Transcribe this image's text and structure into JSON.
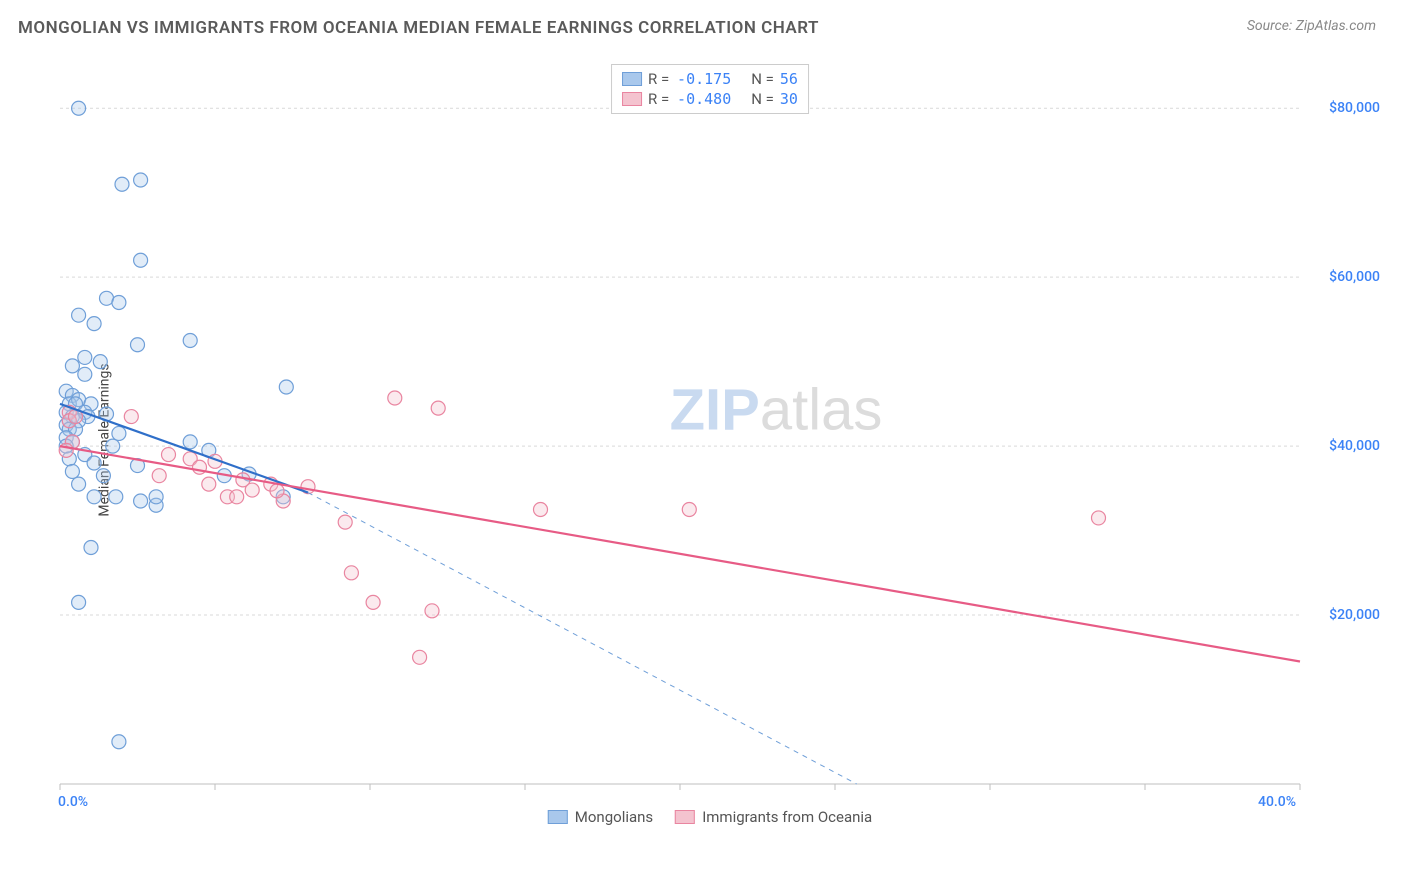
{
  "header": {
    "title": "MONGOLIAN VS IMMIGRANTS FROM OCEANIA MEDIAN FEMALE EARNINGS CORRELATION CHART",
    "source_label": "Source: ",
    "source_name": "ZipAtlas.com"
  },
  "chart": {
    "type": "scatter",
    "y_axis_label": "Median Female Earnings",
    "xlim": [
      0,
      40
    ],
    "ylim": [
      0,
      85000
    ],
    "x_ticks": [
      0,
      5,
      10,
      15,
      20,
      25,
      30,
      35,
      40
    ],
    "x_tick_labels_shown": {
      "0": "0.0%",
      "40": "40.0%"
    },
    "y_gridlines": [
      20000,
      40000,
      60000,
      80000
    ],
    "y_tick_labels": {
      "20000": "$20,000",
      "40000": "$40,000",
      "60000": "$60,000",
      "80000": "$80,000"
    },
    "background_color": "#ffffff",
    "grid_color": "#d9d9d9",
    "grid_dash": "3,3",
    "axis_color": "#bfbfbf",
    "marker_radius": 7,
    "marker_stroke_width": 1.2,
    "marker_fill_opacity": 0.35,
    "watermark": {
      "text_zip": "ZIP",
      "text_atlas": "atlas",
      "zip_color": "#c9daf0",
      "atlas_color": "#dcdcdc"
    }
  },
  "series": [
    {
      "name": "Mongolians",
      "color_fill": "#a9c8ec",
      "color_stroke": "#6f9fd8",
      "trend_color": "#2f6fc9",
      "trend_width": 2.2,
      "R": "-0.175",
      "N": "56",
      "trend": {
        "x1": 0,
        "y1": 45000,
        "x2": 8,
        "y2": 34500
      },
      "trend_ext": {
        "x1": 8,
        "y1": 34500,
        "x2": 25.7,
        "y2": 0
      },
      "points": [
        [
          0.6,
          80000
        ],
        [
          2.0,
          71000
        ],
        [
          2.6,
          71500
        ],
        [
          2.6,
          62000
        ],
        [
          1.5,
          57500
        ],
        [
          1.9,
          57000
        ],
        [
          0.6,
          55500
        ],
        [
          1.1,
          54500
        ],
        [
          0.8,
          50500
        ],
        [
          1.3,
          50000
        ],
        [
          0.4,
          49500
        ],
        [
          2.5,
          52000
        ],
        [
          4.2,
          52500
        ],
        [
          0.2,
          46500
        ],
        [
          0.4,
          46000
        ],
        [
          0.3,
          45000
        ],
        [
          0.6,
          45500
        ],
        [
          0.5,
          45000
        ],
        [
          1.0,
          45000
        ],
        [
          0.8,
          44000
        ],
        [
          0.2,
          44000
        ],
        [
          0.4,
          43500
        ],
        [
          0.9,
          43500
        ],
        [
          1.5,
          43800
        ],
        [
          0.3,
          43000
        ],
        [
          0.6,
          43000
        ],
        [
          0.2,
          42500
        ],
        [
          0.3,
          42000
        ],
        [
          0.5,
          42000
        ],
        [
          0.2,
          41000
        ],
        [
          7.3,
          47000
        ],
        [
          0.4,
          40500
        ],
        [
          0.2,
          40000
        ],
        [
          1.9,
          41500
        ],
        [
          1.7,
          40000
        ],
        [
          0.8,
          39000
        ],
        [
          0.3,
          38500
        ],
        [
          1.1,
          38000
        ],
        [
          1.4,
          36500
        ],
        [
          0.4,
          37000
        ],
        [
          2.5,
          37700
        ],
        [
          0.6,
          35500
        ],
        [
          1.8,
          34000
        ],
        [
          1.1,
          34000
        ],
        [
          2.6,
          33500
        ],
        [
          3.1,
          33000
        ],
        [
          7.2,
          34000
        ],
        [
          1.0,
          28000
        ],
        [
          0.6,
          21500
        ],
        [
          3.1,
          34000
        ],
        [
          1.9,
          5000
        ],
        [
          4.2,
          40500
        ],
        [
          4.8,
          39500
        ],
        [
          5.3,
          36500
        ],
        [
          6.1,
          36700
        ],
        [
          0.8,
          48500
        ]
      ]
    },
    {
      "name": "Immigrants from Oceania",
      "color_fill": "#f4c3cf",
      "color_stroke": "#e985a0",
      "trend_color": "#e75b85",
      "trend_width": 2.2,
      "R": "-0.480",
      "N": "30",
      "trend": {
        "x1": 0,
        "y1": 40000,
        "x2": 40,
        "y2": 14500
      },
      "points": [
        [
          0.3,
          44000
        ],
        [
          0.3,
          43000
        ],
        [
          0.5,
          43500
        ],
        [
          0.4,
          40500
        ],
        [
          0.2,
          39500
        ],
        [
          3.5,
          39000
        ],
        [
          2.3,
          43500
        ],
        [
          4.2,
          38500
        ],
        [
          4.5,
          37500
        ],
        [
          5.0,
          38200
        ],
        [
          3.2,
          36500
        ],
        [
          4.8,
          35500
        ],
        [
          5.4,
          34000
        ],
        [
          5.7,
          34000
        ],
        [
          6.2,
          34800
        ],
        [
          6.8,
          35500
        ],
        [
          8.0,
          35200
        ],
        [
          7.2,
          33500
        ],
        [
          9.2,
          31000
        ],
        [
          10.8,
          45700
        ],
        [
          12.2,
          44500
        ],
        [
          9.4,
          25000
        ],
        [
          10.1,
          21500
        ],
        [
          12.0,
          20500
        ],
        [
          11.6,
          15000
        ],
        [
          15.5,
          32500
        ],
        [
          20.3,
          32500
        ],
        [
          33.5,
          31500
        ],
        [
          7.0,
          34700
        ],
        [
          5.9,
          36000
        ]
      ]
    }
  ],
  "legend_top": {
    "r_label": "R =",
    "n_label": "N ="
  },
  "legend_bottom": {
    "series1": "Mongolians",
    "series2": "Immigrants from Oceania"
  }
}
